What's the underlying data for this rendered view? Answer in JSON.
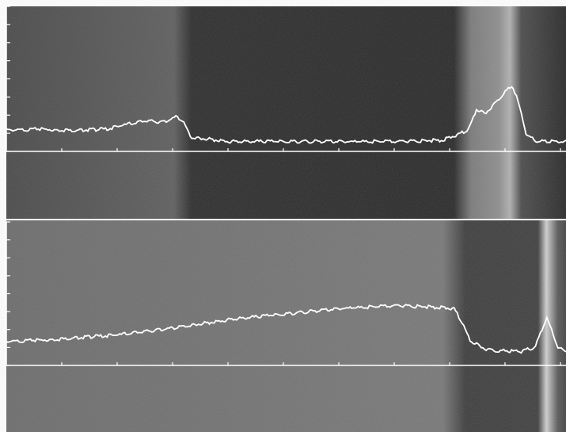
{
  "figure": {
    "kind": "densitometer-trace-over-radiograph",
    "panels": [
      {
        "id": "top",
        "trace_profile": [
          [
            0,
            0.1
          ],
          [
            0.06,
            0.11
          ],
          [
            0.12,
            0.1
          ],
          [
            0.18,
            0.11
          ],
          [
            0.21,
            0.14
          ],
          [
            0.25,
            0.17
          ],
          [
            0.28,
            0.16
          ],
          [
            0.305,
            0.2
          ],
          [
            0.315,
            0.17
          ],
          [
            0.33,
            0.05
          ],
          [
            0.4,
            0.02
          ],
          [
            0.5,
            0.02
          ],
          [
            0.6,
            0.02
          ],
          [
            0.7,
            0.02
          ],
          [
            0.78,
            0.03
          ],
          [
            0.825,
            0.1
          ],
          [
            0.84,
            0.25
          ],
          [
            0.855,
            0.22
          ],
          [
            0.875,
            0.3
          ],
          [
            0.89,
            0.38
          ],
          [
            0.905,
            0.42
          ],
          [
            0.915,
            0.3
          ],
          [
            0.93,
            0.06
          ],
          [
            0.95,
            0.02
          ],
          [
            1.0,
            0.02
          ]
        ],
        "band_positions": [
          0.33,
          0.835,
          0.9
        ]
      },
      {
        "id": "bottom",
        "trace_profile": [
          [
            0,
            0.12
          ],
          [
            0.1,
            0.14
          ],
          [
            0.2,
            0.17
          ],
          [
            0.3,
            0.22
          ],
          [
            0.4,
            0.28
          ],
          [
            0.5,
            0.32
          ],
          [
            0.6,
            0.36
          ],
          [
            0.7,
            0.38
          ],
          [
            0.76,
            0.37
          ],
          [
            0.8,
            0.36
          ],
          [
            0.815,
            0.25
          ],
          [
            0.83,
            0.12
          ],
          [
            0.86,
            0.06
          ],
          [
            0.92,
            0.05
          ],
          [
            0.945,
            0.08
          ],
          [
            0.965,
            0.29
          ],
          [
            0.975,
            0.2
          ],
          [
            0.985,
            0.08
          ],
          [
            1.0,
            0.05
          ]
        ],
        "band_positions": [
          0.815,
          0.965
        ]
      }
    ],
    "colors": {
      "top_left_film": "#5c5c5c",
      "top_mid_film": "#2c2c2c",
      "top_bright_band": "#8c8c8c",
      "bottom_film": "#6e6e6e",
      "bottom_dark_band": "#3a3a3a",
      "bottom_bright_line": "#d4d4d4",
      "trace": "#ffffff",
      "frame": "#ffffff"
    }
  }
}
